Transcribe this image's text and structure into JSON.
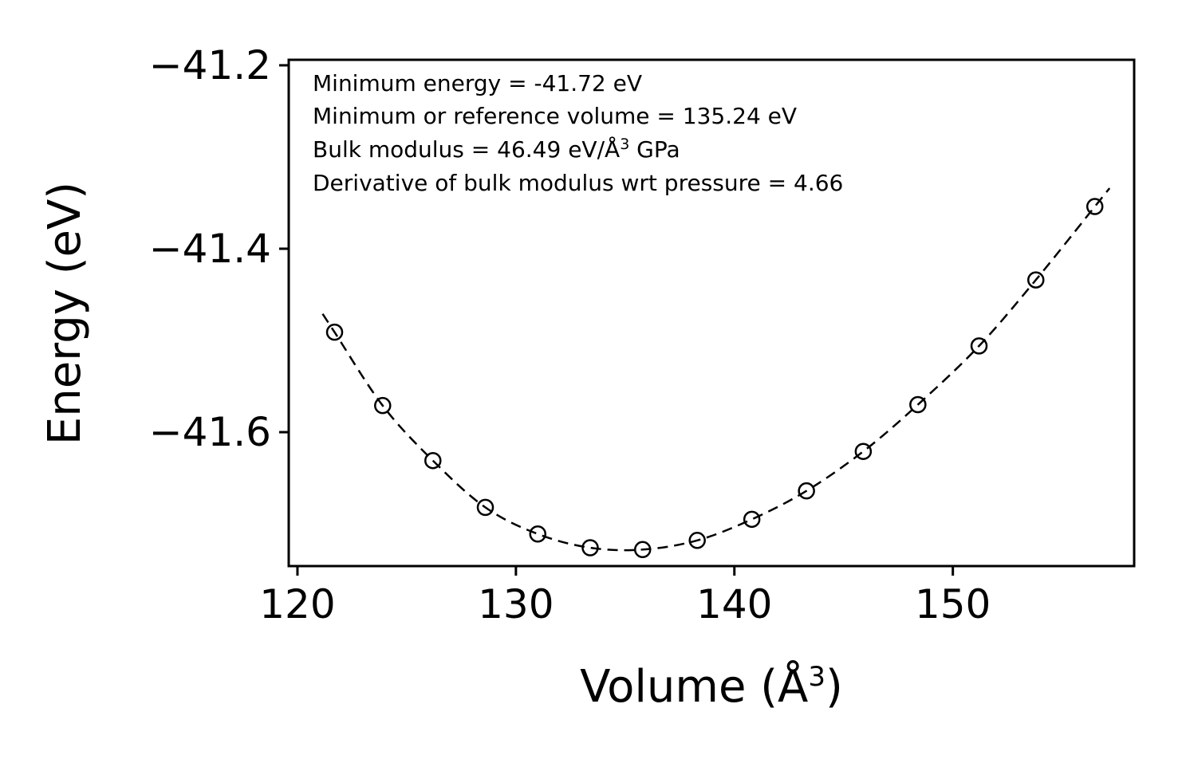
{
  "chart_data": {
    "type": "scatter",
    "title": "",
    "xlabel": "Volume (Å³)",
    "ylabel": "Energy (eV)",
    "xlabel_parts": {
      "prefix": "Volume (Å",
      "sup": "3",
      "suffix": ")"
    },
    "x": [
      121.7,
      123.9,
      126.2,
      128.6,
      131.0,
      133.4,
      135.8,
      138.3,
      140.8,
      143.3,
      145.9,
      148.4,
      151.2,
      153.8,
      156.5
    ],
    "y": [
      -41.491,
      -41.571,
      -41.631,
      -41.682,
      -41.711,
      -41.726,
      -41.728,
      -41.718,
      -41.695,
      -41.664,
      -41.621,
      -41.57,
      -41.506,
      -41.434,
      -41.354
    ],
    "xlim": [
      119.6,
      158.3
    ],
    "ylim": [
      -41.746,
      -41.194
    ],
    "xticks": [
      120,
      130,
      140,
      150
    ],
    "xtick_labels": [
      "120",
      "130",
      "140",
      "150"
    ],
    "yticks": [
      -41.2,
      -41.4,
      -41.6
    ],
    "ytick_labels": [
      "−41.2",
      "−41.4",
      "−41.6"
    ],
    "grid": false,
    "legend": null,
    "line_style": "dashed",
    "marker": "open-circle",
    "color": "#000000",
    "annotations": [
      "Minimum energy = -41.72 eV",
      "Minimum or reference volume = 135.24 eV",
      "Bulk modulus = 46.49 eV/Å³ GPa",
      "Derivative of bulk modulus wrt pressure = 4.66"
    ],
    "annotation_bulk_modulus_parts": {
      "prefix": "Bulk modulus = 46.49 eV/Å",
      "sup": "3",
      "suffix": " GPa"
    },
    "fit_results": {
      "minimum_energy_eV": -41.72,
      "minimum_volume": 135.24,
      "bulk_modulus": 46.49,
      "bulk_modulus_pressure_derivative": 4.66
    }
  }
}
